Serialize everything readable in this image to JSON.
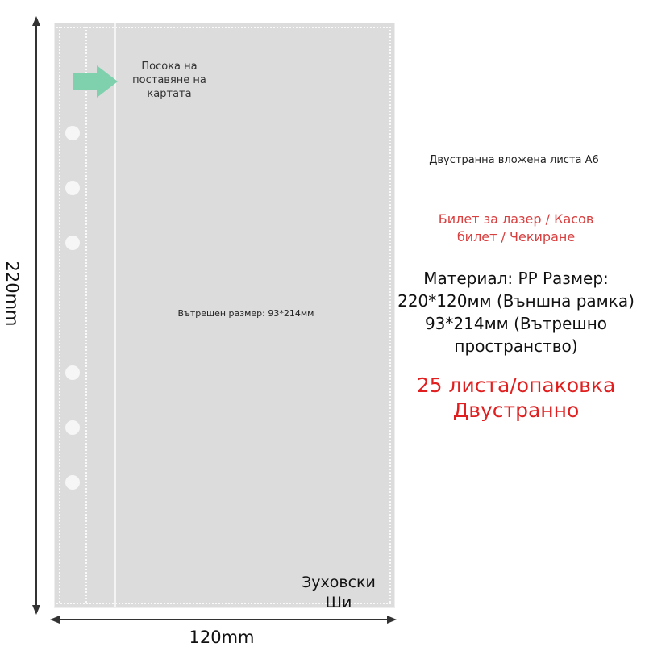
{
  "dimensions": {
    "height": "220mm",
    "width": "120mm"
  },
  "sheet": {
    "arrow_label": "Посока на поставяне на картата",
    "inner_size": "Вътрешен размер: 93*214мм",
    "corner_label": "Зуховски Ши",
    "hole_count": 6,
    "arrow_color": "#7fd1ae"
  },
  "info": {
    "title": "Двустранна вложена листа A6",
    "ticket": "Билет за лазер / Касов билет / Чекиране",
    "material": "Материал: PP Размер: 220*120мм (Външна рамка) 93*214мм (Вътрешно пространство)",
    "pack": "25 листа/опаковка Двустранно",
    "red_color": "#e02020"
  }
}
